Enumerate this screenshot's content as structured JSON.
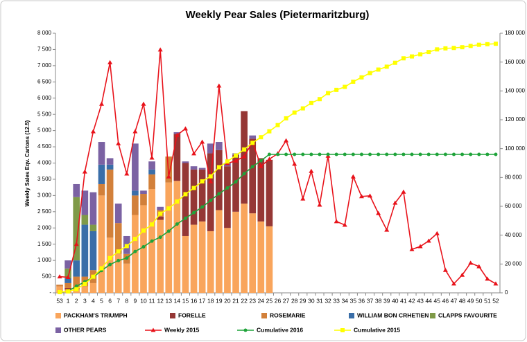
{
  "chart_data": {
    "type": "bar",
    "title": "Weekly Pear Sales (Pietermaritzburg)",
    "y_label": "Weekly Sales Eqv. Cartons (12.5)",
    "categories": [
      "53",
      "1",
      "2",
      "3",
      "4",
      "5",
      "6",
      "7",
      "8",
      "9",
      "10",
      "11",
      "12",
      "13",
      "14",
      "15",
      "16",
      "17",
      "18",
      "19",
      "20",
      "21",
      "22",
      "23",
      "24",
      "25",
      "26",
      "27",
      "28",
      "29",
      "30",
      "31",
      "32",
      "33",
      "34",
      "35",
      "36",
      "37",
      "38",
      "39",
      "40",
      "41",
      "42",
      "43",
      "44",
      "45",
      "46",
      "47",
      "48",
      "49",
      "50",
      "51",
      "52"
    ],
    "ylim": [
      0,
      8000
    ],
    "yticks": [
      {
        "value": 0,
        "label": "-"
      },
      500,
      {
        "value": 1000,
        "label": "1 000"
      },
      {
        "value": 1500,
        "label": "1 500"
      },
      {
        "value": 2000,
        "label": "2 000"
      },
      {
        "value": 2500,
        "label": "2 500"
      },
      {
        "value": 3000,
        "label": "3 000"
      },
      {
        "value": 3500,
        "label": "3 500"
      },
      {
        "value": 4000,
        "label": "4 000"
      },
      {
        "value": 4500,
        "label": "4 500"
      },
      {
        "value": 5000,
        "label": "5 000"
      },
      {
        "value": 5500,
        "label": "5 500"
      },
      {
        "value": 6000,
        "label": "6 000"
      },
      {
        "value": 6500,
        "label": "6 500"
      },
      {
        "value": 7000,
        "label": "7 000"
      },
      {
        "value": 7500,
        "label": "7 500"
      },
      {
        "value": 8000,
        "label": "8 000"
      }
    ],
    "y2lim": [
      0,
      180000
    ],
    "y2ticks": [
      0,
      {
        "value": 20000,
        "label": "20 000"
      },
      {
        "value": 40000,
        "label": "40 000"
      },
      {
        "value": 60000,
        "label": "60 000"
      },
      {
        "value": 80000,
        "label": "80 000"
      },
      {
        "value": 100000,
        "label": "100 000"
      },
      {
        "value": 120000,
        "label": "120 000"
      },
      {
        "value": 140000,
        "label": "140 000"
      },
      {
        "value": 160000,
        "label": "160 000"
      },
      {
        "value": 180000,
        "label": "180 000"
      }
    ],
    "series": [
      {
        "name": "PACKHAM'S TRIUMPH",
        "type": "bar",
        "color": "#f9a55c",
        "values": [
          200,
          100,
          100,
          200,
          300,
          3000,
          1700,
          1200,
          900,
          2400,
          2700,
          3200,
          2250,
          3400,
          3450,
          1750,
          2100,
          2200,
          1900,
          2550,
          2000,
          2500,
          2750,
          2450,
          2200,
          2050,
          null,
          null,
          null,
          null,
          null,
          null,
          null,
          null,
          null,
          null,
          null,
          null,
          null,
          null,
          null,
          null,
          null,
          null,
          null,
          null,
          null,
          null,
          null,
          null,
          null,
          null,
          null
        ]
      },
      {
        "name": "FORELLE",
        "type": "bar",
        "color": "#953735",
        "values": [
          0,
          50,
          0,
          0,
          0,
          0,
          0,
          0,
          0,
          0,
          0,
          0,
          100,
          0,
          1450,
          2250,
          1700,
          1600,
          2400,
          1850,
          1900,
          1750,
          2850,
          2300,
          1950,
          2050,
          null,
          null,
          null,
          null,
          null,
          null,
          null,
          null,
          null,
          null,
          null,
          null,
          null,
          null,
          null,
          null,
          null,
          null,
          null,
          null,
          null,
          null,
          null,
          null,
          null,
          null,
          null
        ]
      },
      {
        "name": "ROSEMARIE",
        "type": "bar",
        "color": "#d2803a",
        "values": [
          50,
          150,
          400,
          300,
          400,
          350,
          2100,
          950,
          300,
          600,
          350,
          450,
          200,
          800,
          0,
          0,
          0,
          0,
          0,
          0,
          0,
          0,
          0,
          0,
          0,
          0,
          null,
          null,
          null,
          null,
          null,
          null,
          null,
          null,
          null,
          null,
          null,
          null,
          null,
          null,
          null,
          null,
          null,
          null,
          null,
          null,
          null,
          null,
          null,
          null,
          null,
          null,
          null
        ]
      },
      {
        "name": "WILLIAM BON CRHETIEN",
        "type": "bar",
        "color": "#3a6ea8",
        "values": [
          0,
          150,
          500,
          1600,
          1200,
          600,
          150,
          0,
          0,
          150,
          0,
          150,
          0,
          0,
          0,
          0,
          0,
          0,
          0,
          0,
          0,
          0,
          0,
          0,
          0,
          0,
          null,
          null,
          null,
          null,
          null,
          null,
          null,
          null,
          null,
          null,
          null,
          null,
          null,
          null,
          null,
          null,
          null,
          null,
          null,
          null,
          null,
          null,
          null,
          null,
          null,
          null,
          null
        ]
      },
      {
        "name": "CLAPPS FAVOURITE",
        "type": "bar",
        "color": "#7f9a48",
        "values": [
          0,
          300,
          1950,
          300,
          200,
          0,
          0,
          0,
          0,
          0,
          0,
          0,
          0,
          0,
          0,
          0,
          0,
          0,
          0,
          0,
          0,
          0,
          0,
          0,
          0,
          0,
          null,
          null,
          null,
          null,
          null,
          null,
          null,
          null,
          null,
          null,
          null,
          null,
          null,
          null,
          null,
          null,
          null,
          null,
          null,
          null,
          null,
          null,
          null,
          null,
          null,
          null,
          null
        ]
      },
      {
        "name": "OTHER PEARS",
        "type": "bar",
        "color": "#7b62a3",
        "values": [
          0,
          250,
          400,
          750,
          1000,
          700,
          200,
          600,
          550,
          1450,
          100,
          250,
          100,
          0,
          50,
          50,
          100,
          50,
          300,
          250,
          100,
          50,
          0,
          100,
          0,
          0,
          null,
          null,
          null,
          null,
          null,
          null,
          null,
          null,
          null,
          null,
          null,
          null,
          null,
          null,
          null,
          null,
          null,
          null,
          null,
          null,
          null,
          null,
          null,
          null,
          null,
          null,
          null
        ]
      },
      {
        "name": "Weekly 2015",
        "type": "line",
        "marker": "triangle",
        "color": "#e8121a",
        "values": [
          500,
          480,
          1500,
          3730,
          4970,
          5820,
          7100,
          4600,
          3670,
          4970,
          5820,
          4160,
          7490,
          3580,
          4860,
          5060,
          4290,
          4650,
          3430,
          6380,
          3990,
          4070,
          4200,
          4650,
          3900,
          4120,
          4290,
          4690,
          3970,
          2900,
          3750,
          2710,
          4220,
          2200,
          2090,
          3580,
          2970,
          2990,
          2450,
          1940,
          2770,
          3110,
          1340,
          1430,
          1600,
          1830,
          700,
          280,
          550,
          920,
          810,
          430,
          280
        ]
      },
      {
        "name": "Cumulative 2016",
        "type": "line",
        "axis": "y2",
        "marker": "circle",
        "color": "#1fa33a",
        "values": [
          250,
          1200,
          4600,
          7700,
          10800,
          15500,
          19600,
          22400,
          24100,
          28700,
          31900,
          35900,
          38600,
          42800,
          47700,
          51700,
          55600,
          59500,
          64100,
          68700,
          72700,
          77000,
          82600,
          87500,
          91600,
          96000,
          96000,
          96000,
          96000,
          96000,
          96000,
          96000,
          96000,
          96000,
          96000,
          96000,
          96000,
          96000,
          96000,
          96000,
          96000,
          96000,
          96000,
          96000,
          96000,
          96000,
          96000,
          96000,
          96000,
          96000,
          96000,
          96000,
          96000
        ]
      },
      {
        "name": "Cumulative 2015",
        "type": "line",
        "axis": "y2",
        "marker": "square",
        "color": "#ffff00",
        "values": [
          500,
          1000,
          2500,
          6200,
          11200,
          17000,
          24100,
          28700,
          32400,
          37400,
          43200,
          47400,
          54900,
          58500,
          63300,
          68400,
          72700,
          77300,
          80800,
          87100,
          91100,
          95200,
          99400,
          104000,
          107900,
          112000,
          116300,
          121000,
          125000,
          127900,
          131600,
          134300,
          138500,
          140700,
          142800,
          146400,
          149400,
          152400,
          154800,
          156800,
          159500,
          162600,
          163900,
          165400,
          167000,
          168800,
          169500,
          169800,
          170300,
          171200,
          172000,
          172400,
          172700
        ]
      }
    ]
  }
}
